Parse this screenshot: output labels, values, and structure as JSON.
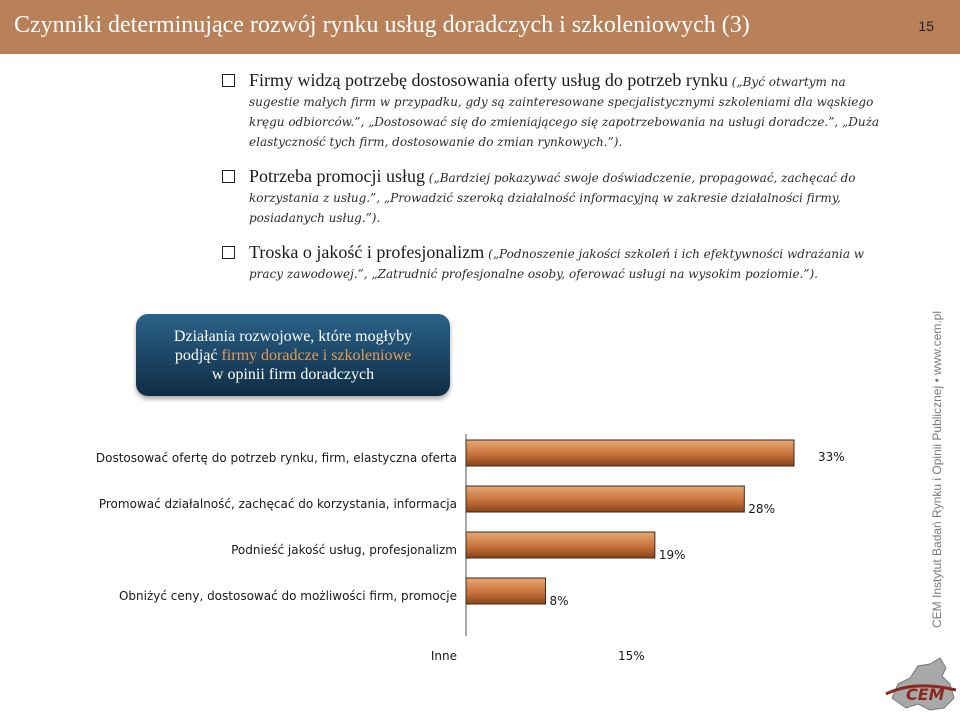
{
  "header": {
    "title": "Czynniki determinujące rozwój rynku usług doradczych i szkoleniowych (3)",
    "slide_number": "15"
  },
  "bullets": [
    {
      "lead": "Firmy widzą potrzebę dostosowania oferty usług do potrzeb rynku",
      "quote": "(„Być otwartym na sugestie małych firm w przypadku, gdy są zainteresowane specjalistycznymi szkoleniami dla wąskiego kręgu odbiorców.”, „Dostosować się do zmieniającego się zapotrzebowania na usługi doradcze.”, „Duża elastyczność tych firm, dostosowanie do zmian rynkowych.”)."
    },
    {
      "lead": "Potrzeba promocji usług",
      "quote": "(„Bardziej pokazywać swoje doświadczenie, propagować, zachęcać do korzystania z usług.”, „Prowadzić szeroką działalność informacyjną w zakresie działalności firmy, posiadanych usług.”)."
    },
    {
      "lead": "Troska o jakość i profesjonalizm",
      "quote": "(„Podnoszenie jakości szkoleń i ich efektywności wdrażania w pracy zawodowej.”, „Zatrudnić profesjonalne osoby, oferować usługi na wysokim poziomie.”)."
    }
  ],
  "callout": {
    "line1": "Działania rozwojowe, które mogłyby",
    "line2_prefix": "podjąć ",
    "line2_highlight": "firmy doradcze i szkoleniowe",
    "line3": "w opinii firm doradczych"
  },
  "chart_data": {
    "type": "bar",
    "orientation": "horizontal",
    "categories": [
      "Dostosować ofertę do potrzeb rynku, firm, elastyczna oferta",
      "Promować działalność, zachęcać do korzystania, informacja",
      "Podnieść jakość usług, profesjonalizm",
      "Obniżyć ceny, dostosować do możliwości firm, promocje",
      "Inne"
    ],
    "values": [
      33,
      28,
      19,
      8,
      15
    ],
    "value_labels": [
      "33%",
      "28%",
      "19%",
      "8%",
      "15%"
    ],
    "xlim": [
      0,
      35
    ],
    "colors": {
      "bar_top": "#e8a874",
      "bar_mid": "#c8733c",
      "bar_bottom": "#8a4418",
      "edge": "#3a2a1f"
    }
  },
  "sidebar": {
    "text": "CEM Instytut Badań Rynku i Opinii Publicznej • www.cem.pl"
  },
  "logo": {
    "text": "CEM"
  },
  "colors": {
    "title_bar": "#b8815a",
    "callout_top": "#2b6389",
    "callout_bottom": "#0e2c44",
    "callout_highlight": "#e49a56"
  }
}
